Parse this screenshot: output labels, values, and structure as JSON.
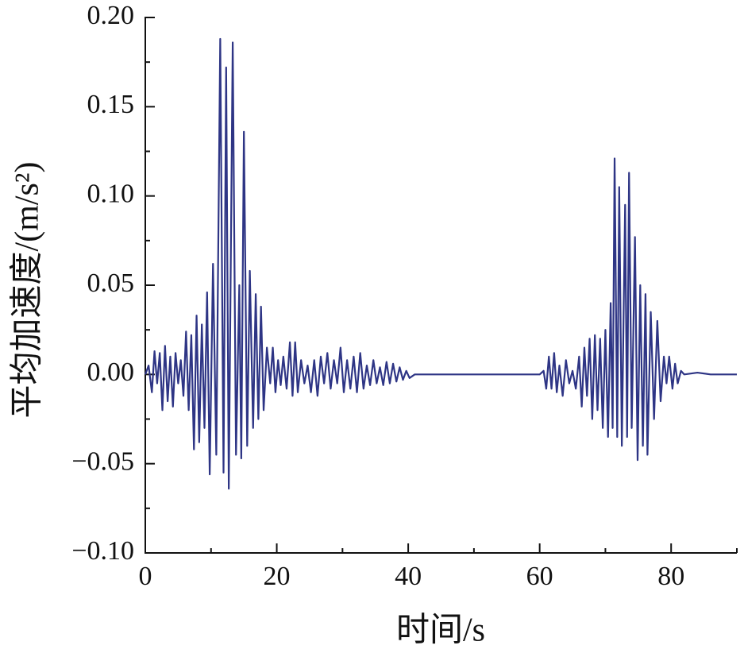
{
  "chart_data": {
    "type": "line",
    "xlabel": "时间/s",
    "ylabel": "平均加速度/(m/s²)",
    "color": "#2e3585",
    "xlim": [
      0,
      90
    ],
    "ylim": [
      -0.1,
      0.2
    ],
    "xticks": [
      0,
      20,
      40,
      60,
      80
    ],
    "xminorticks": [
      10,
      30,
      50,
      70,
      90
    ],
    "yticks": [
      {
        "value": -0.1,
        "label": "−0.10"
      },
      {
        "value": -0.05,
        "label": "−0.05"
      },
      {
        "value": 0,
        "label": "0.00"
      },
      {
        "value": 0.05,
        "label": "0.05"
      },
      {
        "value": 0.1,
        "label": "0.10"
      },
      {
        "value": 0.15,
        "label": "0.15"
      },
      {
        "value": 0.2,
        "label": "0.20"
      }
    ],
    "yminorticks": [
      -0.075,
      -0.025,
      0.025,
      0.075,
      0.125,
      0.175
    ],
    "x": [
      0,
      0.5,
      1,
      1.4,
      1.8,
      2.2,
      2.6,
      3.0,
      3.4,
      3.8,
      4.2,
      4.6,
      5.0,
      5.4,
      5.8,
      6.2,
      6.6,
      7.0,
      7.4,
      7.8,
      8.2,
      8.6,
      9.0,
      9.4,
      9.8,
      10.3,
      10.8,
      11.4,
      11.9,
      12.3,
      12.7,
      13.3,
      13.8,
      14.3,
      14.6,
      15.0,
      15.5,
      15.9,
      16.4,
      16.8,
      17.2,
      17.6,
      18.0,
      18.5,
      19.0,
      19.4,
      19.8,
      20.2,
      20.6,
      21.0,
      21.5,
      22.0,
      22.4,
      22.8,
      23.2,
      23.7,
      24.2,
      24.7,
      25.2,
      25.7,
      26.2,
      26.7,
      27.2,
      27.7,
      28.2,
      28.7,
      29.2,
      29.7,
      30.2,
      30.7,
      31.2,
      31.7,
      32.2,
      32.7,
      33.2,
      33.7,
      34.2,
      34.7,
      35.2,
      35.7,
      36.2,
      36.7,
      37.2,
      37.7,
      38.2,
      38.7,
      39.2,
      39.7,
      40.2,
      41,
      45,
      50,
      55,
      60,
      60.6,
      61.0,
      61.4,
      61.8,
      62.2,
      62.6,
      63.0,
      63.5,
      64.0,
      64.5,
      65.0,
      65.5,
      66.0,
      66.4,
      66.8,
      67.2,
      67.6,
      68.0,
      68.4,
      68.8,
      69.2,
      69.6,
      70.0,
      70.4,
      70.8,
      71.1,
      71.4,
      71.8,
      72.1,
      72.5,
      73.0,
      73.3,
      73.6,
      74.0,
      74.5,
      74.9,
      75.3,
      75.7,
      76.1,
      76.4,
      76.9,
      77.4,
      77.9,
      78.4,
      78.9,
      79.3,
      79.7,
      80.2,
      80.6,
      81.0,
      81.5,
      82,
      84,
      86,
      90
    ],
    "values": [
      0,
      0.005,
      -0.01,
      0.013,
      -0.005,
      0.012,
      -0.02,
      0.016,
      -0.015,
      0.01,
      -0.018,
      0.012,
      -0.005,
      0.008,
      -0.012,
      0.024,
      -0.02,
      0.022,
      -0.042,
      0.033,
      -0.038,
      0.028,
      -0.03,
      0.046,
      -0.056,
      0.062,
      -0.045,
      0.188,
      -0.055,
      0.172,
      -0.064,
      0.186,
      -0.045,
      0.05,
      -0.047,
      0.136,
      -0.04,
      0.058,
      -0.03,
      0.045,
      -0.025,
      0.038,
      -0.02,
      0.015,
      -0.005,
      0.015,
      -0.01,
      0.008,
      -0.006,
      0.01,
      -0.008,
      0.018,
      -0.012,
      0.018,
      -0.01,
      0.008,
      -0.005,
      0.005,
      -0.01,
      0.008,
      -0.012,
      0.01,
      -0.005,
      0.012,
      -0.008,
      0.008,
      -0.005,
      0.015,
      -0.01,
      0.008,
      -0.008,
      0.01,
      -0.01,
      0.012,
      -0.008,
      0.005,
      -0.006,
      0.008,
      -0.005,
      0.004,
      -0.006,
      0.007,
      -0.005,
      0.006,
      -0.004,
      0.004,
      -0.003,
      0.002,
      -0.002,
      0,
      0,
      0,
      0,
      0,
      0.002,
      -0.008,
      0.01,
      -0.008,
      0.012,
      -0.01,
      0.005,
      -0.012,
      0.008,
      -0.005,
      0.002,
      -0.008,
      0.01,
      -0.018,
      0.015,
      -0.012,
      0.02,
      -0.025,
      0.022,
      -0.02,
      0.02,
      -0.03,
      0.025,
      -0.035,
      0.04,
      -0.03,
      0.121,
      -0.035,
      0.105,
      -0.04,
      0.095,
      -0.035,
      0.113,
      -0.03,
      0.077,
      -0.048,
      0.05,
      -0.04,
      0.045,
      -0.045,
      0.035,
      -0.025,
      0.03,
      -0.015,
      0.01,
      -0.005,
      0.01,
      -0.008,
      0.006,
      -0.005,
      0.002,
      0,
      0.001,
      0,
      0
    ]
  }
}
